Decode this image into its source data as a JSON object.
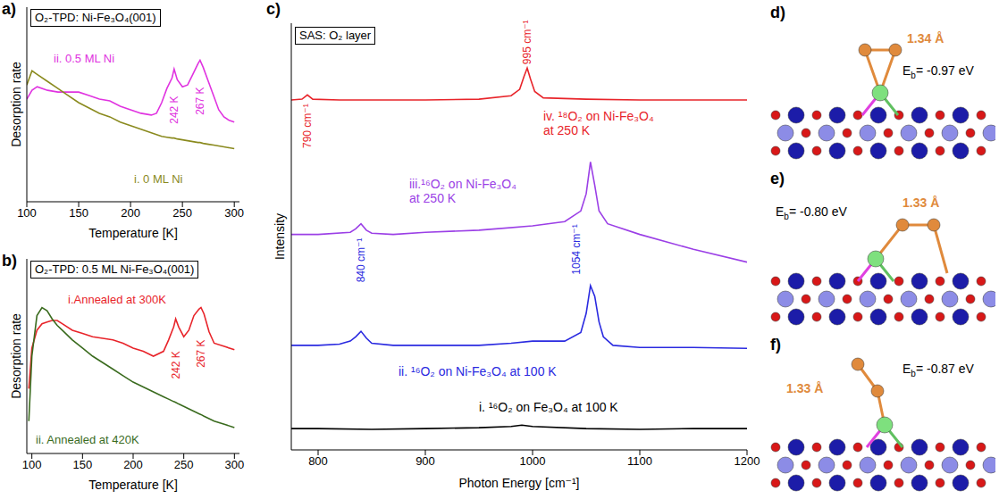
{
  "chart_data": [
    {
      "type": "line",
      "panel": "a)",
      "title": "O₂-TPD: Ni-Fe₃O₄(001)",
      "x_label": "Temperature [K]",
      "y_label": "Desorption rate",
      "xlim": [
        100,
        305
      ],
      "xticks": [
        100,
        150,
        200,
        250,
        300
      ],
      "ylim": [
        0,
        11
      ],
      "tick_labels": "x",
      "x": [
        100,
        105,
        110,
        120,
        130,
        140,
        150,
        160,
        170,
        180,
        190,
        200,
        210,
        220,
        225,
        230,
        235,
        240,
        242,
        245,
        250,
        255,
        260,
        265,
        267,
        270,
        275,
        280,
        285,
        290,
        295,
        300
      ],
      "series": [
        {
          "name": "ii. 0.5 ML Ni",
          "color": "#e033e0",
          "values": [
            5.8,
            6.3,
            6.5,
            6.3,
            6.2,
            6.2,
            6.2,
            6.0,
            5.8,
            5.7,
            5.4,
            5.2,
            5.0,
            4.9,
            5.0,
            5.6,
            6.4,
            7.0,
            7.5,
            6.9,
            6.5,
            6.6,
            7.2,
            7.8,
            8.0,
            7.6,
            6.8,
            6.0,
            5.2,
            4.8,
            4.6,
            4.5
          ]
        },
        {
          "name": "i. 0 ML Ni",
          "color": "#8a8a1e",
          "values": [
            6.6,
            7.4,
            7.2,
            6.8,
            6.4,
            6.0,
            5.6,
            5.3,
            5.0,
            4.8,
            4.5,
            4.3,
            4.1,
            3.9,
            3.8,
            3.7,
            3.65,
            3.6,
            3.6,
            3.55,
            3.5,
            3.45,
            3.4,
            3.35,
            3.35,
            3.3,
            3.25,
            3.2,
            3.15,
            3.1,
            3.05,
            3.0
          ]
        }
      ],
      "annotations": [
        {
          "text": "242 K",
          "x": 242
        },
        {
          "text": "267 K",
          "x": 267
        }
      ]
    },
    {
      "type": "line",
      "panel": "b)",
      "title": "O₂-TPD: 0.5 ML Ni-Fe₃O₄(001)",
      "x_label": "Temperature [K]",
      "y_label": "Desorption rate",
      "xlim": [
        95,
        305
      ],
      "xticks": [
        100,
        150,
        200,
        250,
        300
      ],
      "ylim": [
        0,
        12
      ],
      "tick_labels": "x",
      "x": [
        97,
        100,
        105,
        110,
        115,
        120,
        125,
        130,
        140,
        150,
        160,
        170,
        180,
        190,
        200,
        210,
        220,
        230,
        235,
        240,
        242,
        245,
        250,
        255,
        260,
        265,
        267,
        270,
        275,
        280,
        290,
        300
      ],
      "series": [
        {
          "name": "i.Annealed at 300K",
          "color": "#e8242a",
          "values": [
            4.0,
            6.5,
            7.6,
            8.0,
            8.1,
            8.2,
            8.2,
            8.0,
            7.6,
            7.4,
            7.2,
            7.1,
            7.0,
            6.8,
            6.5,
            6.3,
            6.0,
            6.3,
            7.0,
            7.8,
            8.3,
            7.8,
            7.2,
            7.6,
            8.5,
            8.9,
            9.0,
            8.6,
            7.5,
            6.8,
            6.6,
            6.4
          ]
        },
        {
          "name": "ii. Annealed at 420K",
          "color": "#3a6b1e",
          "values": [
            2.0,
            6.0,
            8.5,
            9.0,
            8.8,
            8.3,
            7.9,
            7.6,
            7.0,
            6.5,
            6.0,
            5.6,
            5.2,
            4.8,
            4.4,
            4.1,
            3.8,
            3.5,
            3.35,
            3.2,
            3.15,
            3.05,
            2.9,
            2.75,
            2.6,
            2.45,
            2.4,
            2.3,
            2.15,
            2.0,
            1.8,
            1.6
          ]
        }
      ],
      "annotations": [
        {
          "text": "242 K",
          "x": 242
        },
        {
          "text": "267 K",
          "x": 267
        }
      ]
    },
    {
      "type": "line",
      "panel": "c)",
      "title": "SAS: O₂ layer",
      "x_label": "Photon Energy [cm⁻¹]",
      "y_label": "Intensity",
      "xlim": [
        775,
        1200
      ],
      "xticks": [
        800,
        900,
        1000,
        1100,
        1200
      ],
      "ylim": [
        0,
        10
      ],
      "tick_labels": "x",
      "series": [
        {
          "name": "i. ¹⁶O₂ on Fe₃O₄ at 100 K",
          "color": "#000000",
          "x": [
            775,
            800,
            850,
            900,
            950,
            980,
            990,
            1000,
            1050,
            1100,
            1150,
            1200
          ],
          "values": [
            0.5,
            0.5,
            0.48,
            0.5,
            0.52,
            0.55,
            0.58,
            0.55,
            0.5,
            0.48,
            0.5,
            0.5
          ]
        },
        {
          "name": "ii. ¹⁶O₂ on Ni-Fe₃O₄ at 100 K",
          "color": "#2a2ae0",
          "x": [
            775,
            800,
            820,
            830,
            835,
            840,
            845,
            850,
            870,
            900,
            950,
            980,
            1000,
            1030,
            1045,
            1050,
            1054,
            1058,
            1062,
            1066,
            1075,
            1100,
            1150,
            1200
          ],
          "values": [
            2.45,
            2.45,
            2.48,
            2.55,
            2.65,
            2.78,
            2.62,
            2.5,
            2.45,
            2.45,
            2.45,
            2.5,
            2.55,
            2.55,
            2.75,
            3.2,
            3.85,
            3.6,
            3.0,
            2.65,
            2.45,
            2.4,
            2.4,
            2.38
          ]
        },
        {
          "name": "iii.¹⁶O₂ on Ni-Fe₃O₄ at 250 K",
          "color": "#9b3fe6",
          "x": [
            775,
            800,
            830,
            835,
            840,
            845,
            850,
            870,
            900,
            950,
            1000,
            1030,
            1045,
            1050,
            1054,
            1058,
            1062,
            1070,
            1100,
            1150,
            1200
          ],
          "values": [
            5.05,
            5.05,
            5.1,
            5.18,
            5.3,
            5.15,
            5.08,
            5.05,
            5.1,
            5.15,
            5.25,
            5.35,
            5.6,
            6.0,
            6.75,
            6.2,
            5.6,
            5.3,
            5.05,
            4.7,
            4.4
          ]
        },
        {
          "name": "iv. ¹⁸O₂ on Ni-Fe₃O₄ at 250 K",
          "color": "#e8242a",
          "x": [
            775,
            785,
            790,
            795,
            820,
            900,
            950,
            980,
            988,
            992,
            995,
            998,
            1002,
            1010,
            1050,
            1100,
            1150,
            1200
          ],
          "values": [
            8.2,
            8.22,
            8.32,
            8.22,
            8.2,
            8.2,
            8.22,
            8.3,
            8.45,
            8.75,
            8.95,
            8.7,
            8.4,
            8.25,
            8.22,
            8.2,
            8.2,
            8.2
          ]
        }
      ],
      "annotations": [
        {
          "text": "790 cm⁻¹",
          "x": 790
        },
        {
          "text": "840 cm⁻¹",
          "x": 840
        },
        {
          "text": "1054 cm⁻¹",
          "x": 1054
        },
        {
          "text": "995 cm⁻¹",
          "x": 995
        }
      ]
    }
  ],
  "structures": [
    {
      "panel": "d)",
      "bond_label": "1.34 Å",
      "energy_label": {
        "symbol": "E",
        "subscript": "b",
        "text": "= -0.97 eV"
      }
    },
    {
      "panel": "e)",
      "bond_label": "1.33 Å",
      "energy_label": {
        "symbol": "E",
        "subscript": "b",
        "text": "= -0.80 eV"
      }
    },
    {
      "panel": "f)",
      "bond_label": "1.33 Å",
      "energy_label": {
        "symbol": "E",
        "subscript": "b",
        "text": "= -0.87 eV"
      }
    }
  ]
}
